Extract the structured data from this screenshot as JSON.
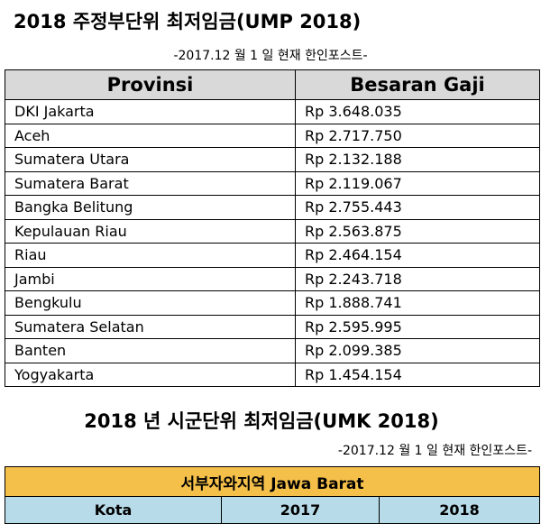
{
  "header": {
    "title": "2018 주정부단위 최저임금(UMP 2018)",
    "subtitle": "-2017.12 월 1 일 현재 한인포스트-"
  },
  "table": {
    "columns": [
      "Provinsi",
      "Besaran Gaji"
    ],
    "rows": [
      [
        "DKI Jakarta",
        "Rp 3.648.035"
      ],
      [
        "Aceh",
        "Rp 2.717.750"
      ],
      [
        "Sumatera Utara",
        "Rp 2.132.188"
      ],
      [
        "Sumatera Barat",
        "Rp 2.119.067"
      ],
      [
        "Bangka Belitung",
        "Rp 2.755.443"
      ],
      [
        "Kepulauan Riau",
        "Rp 2.563.875"
      ],
      [
        "Riau",
        "Rp 2.464.154"
      ],
      [
        "Jambi",
        "Rp 2.243.718"
      ],
      [
        "Bengkulu",
        "Rp 1.888.741"
      ],
      [
        "Sumatera Selatan",
        "Rp 2.595.995"
      ],
      [
        "Banten",
        "Rp 2.099.385"
      ],
      [
        "Yogyakarta",
        "Rp 1.454.154"
      ]
    ]
  },
  "section2": {
    "title": "2018 년 시군단위 최저임금(UMK 2018)",
    "subtitle": "-2017.12 월 1 일 현재 한인포스트-",
    "region": "서부자와지역 Jawa Barat",
    "columns": [
      "Kota",
      "2017",
      "2018"
    ]
  }
}
